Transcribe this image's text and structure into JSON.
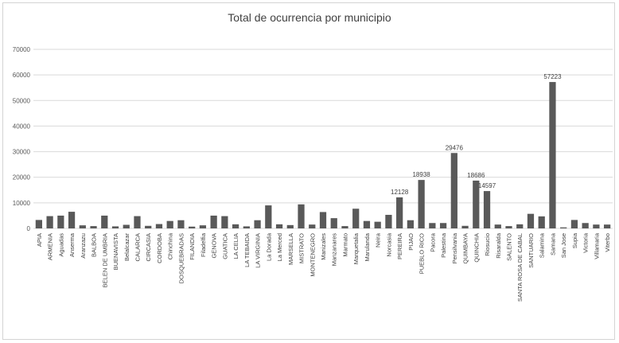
{
  "chart_data": {
    "type": "bar",
    "title": "Total de ocurrencia por municipio",
    "xlabel": "",
    "ylabel": "",
    "ylim": [
      0,
      70000
    ],
    "yticks": [
      0,
      10000,
      20000,
      30000,
      40000,
      50000,
      60000,
      70000
    ],
    "grid": true,
    "legend": "none",
    "bar_color": "#595959",
    "categories": [
      "APIA",
      "ARMENIA",
      "Aguadas",
      "Anserma",
      "Aranzazu",
      "BALBOA",
      "BELEN DE UMBRIA",
      "BUENAVISTA",
      "Belalcazar",
      "CALARCA",
      "CIRCASIA",
      "CORDOBA",
      "Chinchina",
      "DOSQUEBRADAS",
      "FILANDIA",
      "Filadelfia",
      "GENOVA",
      "GUATICA",
      "LA CELIA",
      "LA TEBAIDA",
      "LA VIRGINIA",
      "La Dorada",
      "La Merced",
      "MARSELLA",
      "MISTRATO",
      "MONTENEGRO",
      "Manizales",
      "Manzanares",
      "Marmato",
      "Marquetalia",
      "Marulanda",
      "Neira",
      "Norcasia",
      "PEREIRA",
      "PIJAO",
      "PUEBLO RICO",
      "Pacora",
      "Palestina",
      "Pensilvania",
      "QUIMBAYA",
      "QUINCHIA",
      "Riosucio",
      "Risaralda",
      "SALENTO",
      "SANTA ROSA DE CABAL",
      "SANTUARIO",
      "Salamina",
      "Samana",
      "San Jose",
      "Supia",
      "Victoria",
      "Villamaria",
      "Viterbo"
    ],
    "values": [
      3300,
      4800,
      5000,
      6500,
      1200,
      900,
      5000,
      800,
      1400,
      4800,
      1000,
      1700,
      2900,
      3200,
      700,
      1200,
      5000,
      4800,
      1600,
      800,
      3200,
      9000,
      1600,
      1300,
      9400,
      1500,
      6400,
      4000,
      900,
      7700,
      2900,
      2600,
      5300,
      12128,
      3200,
      18938,
      2100,
      2100,
      29476,
      1000,
      18686,
      14597,
      1500,
      900,
      1600,
      5700,
      4700,
      57223,
      400,
      3300,
      2100,
      1500,
      1500
    ],
    "data_labels": [
      {
        "index": 33,
        "text": "12128"
      },
      {
        "index": 35,
        "text": "18938"
      },
      {
        "index": 38,
        "text": "29476"
      },
      {
        "index": 40,
        "text": "18686"
      },
      {
        "index": 41,
        "text": "14597"
      },
      {
        "index": 47,
        "text": "57223"
      }
    ]
  }
}
